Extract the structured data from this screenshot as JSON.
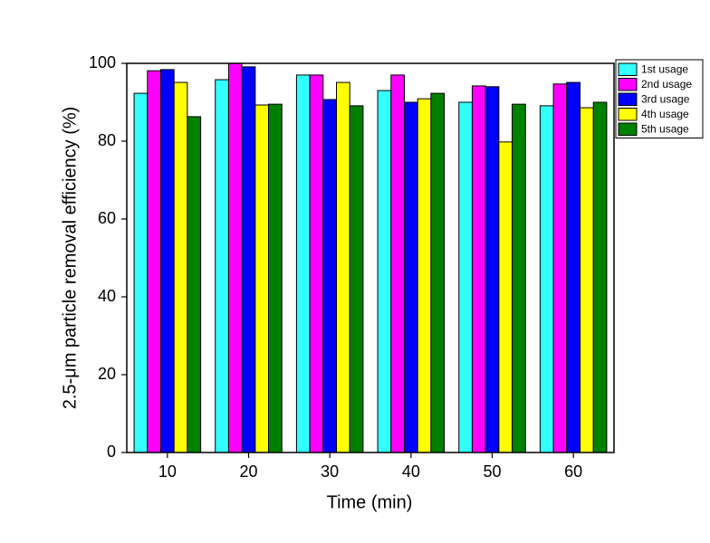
{
  "chart_data": {
    "type": "bar",
    "x_label": "Time (min)",
    "y_label": "2.5-μm particle removal efficiency (%)",
    "categories": [
      "10",
      "20",
      "30",
      "40",
      "50",
      "60"
    ],
    "series": [
      {
        "name": "1st usage",
        "color": "#33ffff",
        "values": [
          92.3,
          95.8,
          97.0,
          93.0,
          90.0,
          89.1
        ]
      },
      {
        "name": "2nd usage",
        "color": "#ff00ff",
        "values": [
          98.1,
          100,
          97.0,
          97.0,
          94.2,
          94.7
        ]
      },
      {
        "name": "3rd usage",
        "color": "#0000ff",
        "values": [
          98.4,
          99.1,
          90.7,
          90.0,
          94.0,
          95.1
        ]
      },
      {
        "name": "4th usage",
        "color": "#ffff00",
        "values": [
          95.1,
          89.3,
          95.1,
          90.9,
          79.8,
          88.6
        ]
      },
      {
        "name": "5th usage",
        "color": "#008000",
        "values": [
          86.3,
          89.5,
          89.1,
          92.3,
          89.5,
          90.0
        ]
      }
    ],
    "ylim": [
      0,
      100
    ],
    "yticks": [
      0,
      20,
      40,
      60,
      80,
      100
    ],
    "grid": false,
    "legend": "top-right"
  }
}
